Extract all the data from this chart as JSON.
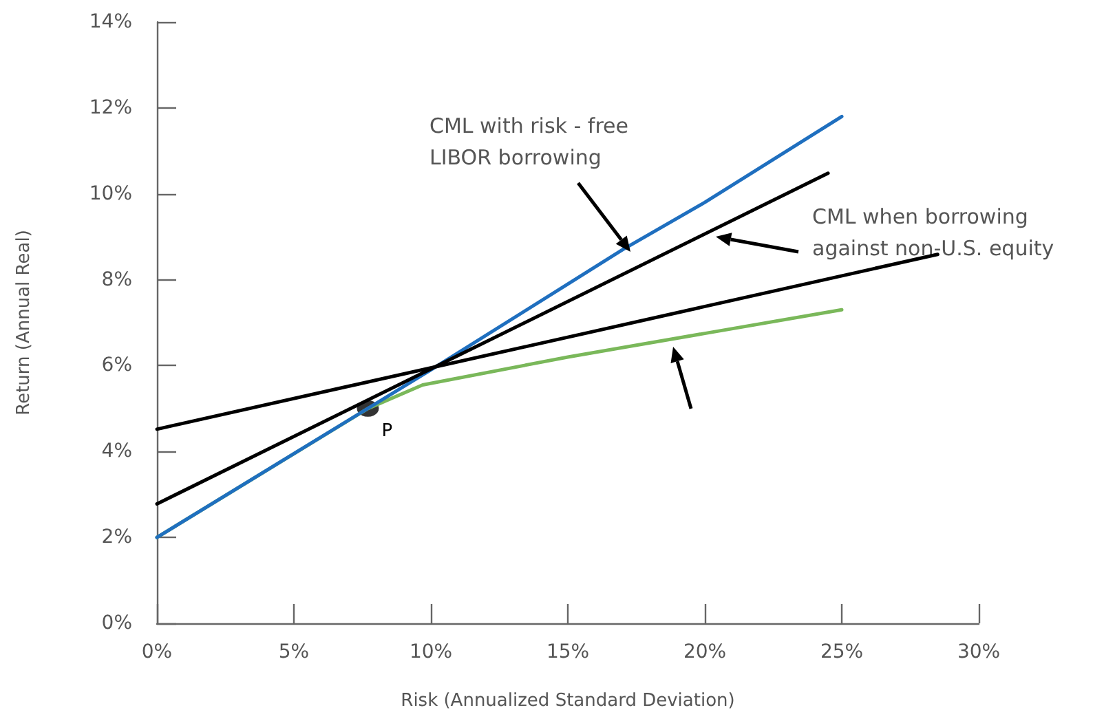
{
  "chart_data": {
    "type": "line",
    "xlabel": "Risk (Annualized Standard Deviation)",
    "ylabel": "Return (Annual Real)",
    "xlim": [
      0,
      30
    ],
    "xticks": [
      {
        "value": 0,
        "label": "0%"
      },
      {
        "value": 5,
        "label": "5%"
      },
      {
        "value": 10,
        "label": "10%"
      },
      {
        "value": 15,
        "label": "15%"
      },
      {
        "value": 20,
        "label": "20%"
      },
      {
        "value": 25,
        "label": "25%"
      },
      {
        "value": 30,
        "label": "30%"
      }
    ],
    "ylim": [
      0,
      14
    ],
    "yticks": [
      {
        "value": 0,
        "label": "0%"
      },
      {
        "value": 2,
        "label": "2%"
      },
      {
        "value": 4,
        "label": "4%"
      },
      {
        "value": 6,
        "label": "6%"
      },
      {
        "value": 8,
        "label": "8%"
      },
      {
        "value": 10,
        "label": "10%"
      },
      {
        "value": 12,
        "label": "12%"
      },
      {
        "value": 14,
        "label": "14%"
      }
    ],
    "grid": false,
    "marker": "none",
    "line_style": "solid",
    "series": [
      {
        "color": "#7ab85a",
        "x": [
          0,
          7.7,
          9.7,
          15,
          20,
          25
        ],
        "values": [
          2.0,
          5.0,
          5.55,
          6.2,
          6.75,
          7.3
        ]
      },
      {
        "color": "#1f6fbf",
        "x": [
          0,
          5,
          10,
          15,
          17,
          20,
          25
        ],
        "values": [
          2.0,
          3.95,
          5.9,
          7.9,
          8.7,
          9.8,
          11.8
        ]
      },
      {
        "color": "#000000",
        "x": [
          0,
          24.5
        ],
        "values": [
          2.78,
          10.48
        ]
      },
      {
        "color": "#000000",
        "x": [
          0,
          28.5
        ],
        "values": [
          4.52,
          8.59
        ]
      },
      {
        "type": "scatter",
        "marker": "circle",
        "color": "#000000",
        "x": [
          7.7
        ],
        "values": [
          5.0
        ]
      }
    ],
    "annotations": [
      "CML with risk - free\nLIBOR borrowing",
      "CML when borrowing\nagainst non-U.S. equity",
      {
        "text": "P",
        "x": 7.7,
        "y": 5.0
      }
    ]
  }
}
